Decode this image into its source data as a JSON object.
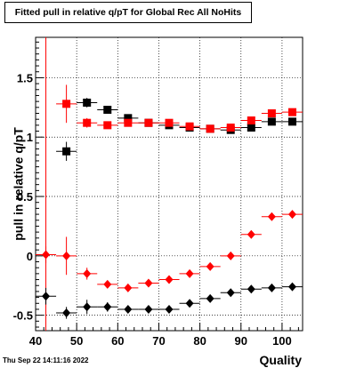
{
  "title": "Fitted pull in relative q/pT for Global Rec All NoHits",
  "timestamp": "Thu Sep 22 14:11:16 2022",
  "chart_data": {
    "type": "scatter",
    "title": "Fitted pull in relative q/pT for Global Rec All NoHits",
    "xlabel": "Quality",
    "ylabel": "pull in relative q/pT",
    "xlim": [
      40,
      105
    ],
    "ylim": [
      -0.63,
      1.84
    ],
    "x_ticks": [
      "40",
      "50",
      "60",
      "70",
      "80",
      "90",
      "100"
    ],
    "y_ticks": [
      "-0.5",
      "0",
      "0.5",
      "1",
      "1.5"
    ],
    "grid": true,
    "reference_line_x": 42.5,
    "series": [
      {
        "marker": "square",
        "color": "#000000",
        "points": [
          {
            "x": 47.5,
            "y": 0.88,
            "err": 0.08
          },
          {
            "x": 52.5,
            "y": 1.29,
            "err": 0.04
          },
          {
            "x": 57.5,
            "y": 1.23,
            "err": 0.03
          },
          {
            "x": 62.5,
            "y": 1.16,
            "err": 0.02
          },
          {
            "x": 67.5,
            "y": 1.12,
            "err": 0.02
          },
          {
            "x": 72.5,
            "y": 1.1,
            "err": 0.02
          },
          {
            "x": 77.5,
            "y": 1.08,
            "err": 0.02
          },
          {
            "x": 82.5,
            "y": 1.07,
            "err": 0.02
          },
          {
            "x": 87.5,
            "y": 1.06,
            "err": 0.02
          },
          {
            "x": 92.5,
            "y": 1.08,
            "err": 0.02
          },
          {
            "x": 97.5,
            "y": 1.13,
            "err": 0.02
          },
          {
            "x": 102.5,
            "y": 1.13,
            "err": 0.02
          }
        ]
      },
      {
        "marker": "square",
        "color": "#ff0000",
        "points": [
          {
            "x": 47.5,
            "y": 1.28,
            "err": 0.16
          },
          {
            "x": 52.5,
            "y": 1.12,
            "err": 0.04
          },
          {
            "x": 57.5,
            "y": 1.1,
            "err": 0.03
          },
          {
            "x": 62.5,
            "y": 1.12,
            "err": 0.02
          },
          {
            "x": 67.5,
            "y": 1.12,
            "err": 0.02
          },
          {
            "x": 72.5,
            "y": 1.12,
            "err": 0.02
          },
          {
            "x": 77.5,
            "y": 1.09,
            "err": 0.02
          },
          {
            "x": 82.5,
            "y": 1.07,
            "err": 0.02
          },
          {
            "x": 87.5,
            "y": 1.08,
            "err": 0.02
          },
          {
            "x": 92.5,
            "y": 1.14,
            "err": 0.02
          },
          {
            "x": 97.5,
            "y": 1.2,
            "err": 0.02
          },
          {
            "x": 102.5,
            "y": 1.21,
            "err": 0.02
          }
        ]
      },
      {
        "marker": "diamond",
        "color": "#ff0000",
        "points": [
          {
            "x": 42.5,
            "y": 0.01,
            "err": 0.07
          },
          {
            "x": 47.5,
            "y": 0.0,
            "err": 0.16
          },
          {
            "x": 52.5,
            "y": -0.15,
            "err": 0.05
          },
          {
            "x": 57.5,
            "y": -0.24,
            "err": 0.03
          },
          {
            "x": 62.5,
            "y": -0.27,
            "err": 0.02
          },
          {
            "x": 67.5,
            "y": -0.23,
            "err": 0.02
          },
          {
            "x": 72.5,
            "y": -0.2,
            "err": 0.02
          },
          {
            "x": 77.5,
            "y": -0.15,
            "err": 0.02
          },
          {
            "x": 82.5,
            "y": -0.09,
            "err": 0.02
          },
          {
            "x": 87.5,
            "y": 0.0,
            "err": 0.02
          },
          {
            "x": 92.5,
            "y": 0.18,
            "err": 0.02
          },
          {
            "x": 97.5,
            "y": 0.33,
            "err": 0.02
          },
          {
            "x": 102.5,
            "y": 0.35,
            "err": 0.02
          }
        ]
      },
      {
        "marker": "diamond",
        "color": "#000000",
        "points": [
          {
            "x": 42.5,
            "y": -0.34,
            "err": 0.07
          },
          {
            "x": 47.5,
            "y": -0.48,
            "err": 0.05
          },
          {
            "x": 52.5,
            "y": -0.43,
            "err": 0.06
          },
          {
            "x": 57.5,
            "y": -0.43,
            "err": 0.04
          },
          {
            "x": 62.5,
            "y": -0.45,
            "err": 0.02
          },
          {
            "x": 67.5,
            "y": -0.45,
            "err": 0.02
          },
          {
            "x": 72.5,
            "y": -0.45,
            "err": 0.02
          },
          {
            "x": 77.5,
            "y": -0.4,
            "err": 0.02
          },
          {
            "x": 82.5,
            "y": -0.36,
            "err": 0.02
          },
          {
            "x": 87.5,
            "y": -0.31,
            "err": 0.02
          },
          {
            "x": 92.5,
            "y": -0.28,
            "err": 0.02
          },
          {
            "x": 97.5,
            "y": -0.27,
            "err": 0.02
          },
          {
            "x": 102.5,
            "y": -0.26,
            "err": 0.02
          }
        ]
      }
    ]
  }
}
